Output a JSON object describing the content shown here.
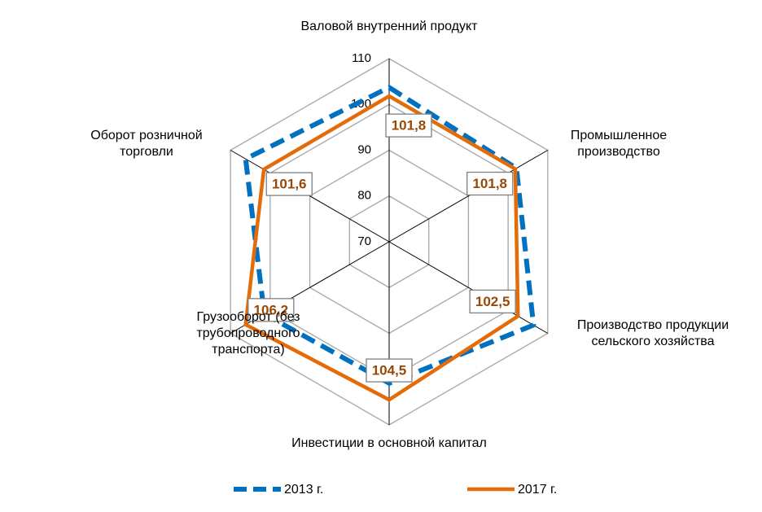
{
  "chart_data": {
    "type": "radar",
    "categories": [
      "Валовой внутренний продукт",
      "Промышленное производство",
      "Производство продукции сельского хозяйства",
      "Инвестиции в основной капитал",
      "Грузооборот (без трубопроводного транспорта)",
      "Оборот розничной торговли"
    ],
    "series": [
      {
        "name": "2013 г.",
        "color": "#0070c0",
        "dashed": true,
        "values": [
          103.7,
          102.1,
          106.4,
          100.9,
          101.5,
          106.2
        ]
      },
      {
        "name": "2017 г.",
        "color": "#e36c09",
        "dashed": false,
        "values": [
          101.8,
          101.8,
          102.5,
          104.5,
          106.2,
          101.6
        ],
        "value_labels": [
          "101,8",
          "101,8",
          "102,5",
          "104,5",
          "106,2",
          "101,6"
        ],
        "label_color": "#984807"
      }
    ],
    "ylim": [
      70,
      110
    ],
    "yticks": [
      70,
      80,
      90,
      100,
      110
    ],
    "grid": true,
    "legend": "bottom"
  }
}
